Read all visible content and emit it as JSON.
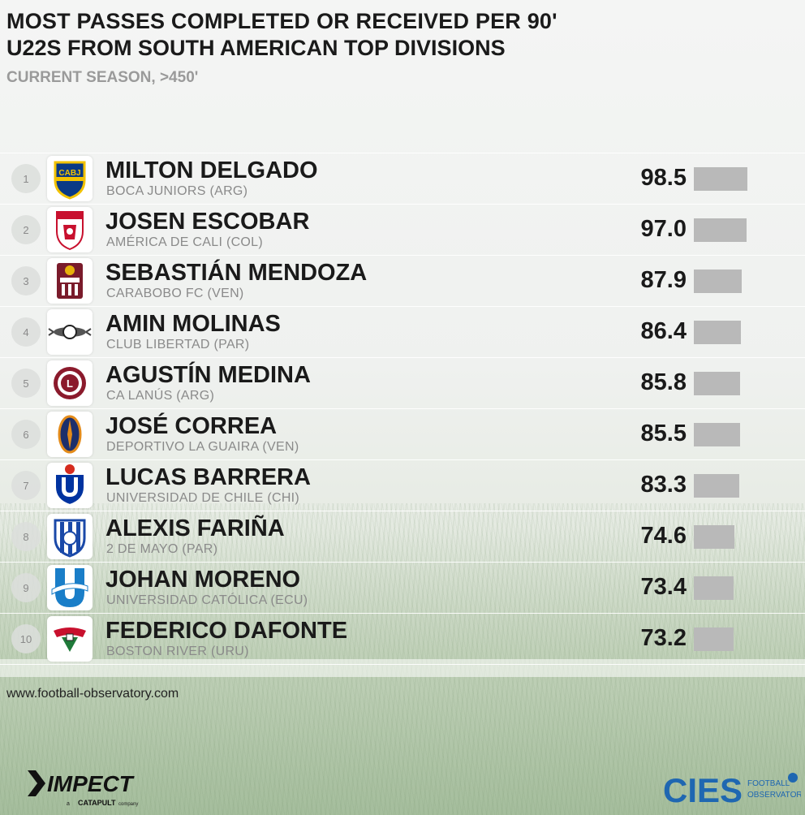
{
  "header": {
    "title": "MOST PASSES COMPLETED OR RECEIVED PER 90'",
    "subtitle": "U22S FROM SOUTH AMERICAN TOP DIVISIONS",
    "note": "CURRENT SEASON, >450'"
  },
  "chart_data": {
    "type": "bar",
    "title": "MOST PASSES COMPLETED OR RECEIVED PER 90'",
    "subtitle": "U22S FROM SOUTH AMERICAN TOP DIVISIONS",
    "note": "CURRENT SEASON, >450'",
    "xlim": [
      0,
      98.5
    ],
    "rows": [
      {
        "rank": "1",
        "player": "MILTON DELGADO",
        "club": "BOCA JUNIORS (ARG)",
        "value": 98.5,
        "label": "98.5",
        "logo": "boca-juniors-crest-icon"
      },
      {
        "rank": "2",
        "player": "JOSEN ESCOBAR",
        "club": "AMÉRICA DE CALI (COL)",
        "value": 97.0,
        "label": "97.0",
        "logo": "america-de-cali-crest-icon"
      },
      {
        "rank": "3",
        "player": "SEBASTIÁN MENDOZA",
        "club": "CARABOBO FC (VEN)",
        "value": 87.9,
        "label": "87.9",
        "logo": "carabobo-crest-icon"
      },
      {
        "rank": "4",
        "player": "AMIN MOLINAS",
        "club": "CLUB LIBERTAD (PAR)",
        "value": 86.4,
        "label": "86.4",
        "logo": "libertad-crest-icon"
      },
      {
        "rank": "5",
        "player": "AGUSTÍN MEDINA",
        "club": "CA LANÚS (ARG)",
        "value": 85.8,
        "label": "85.8",
        "logo": "lanus-crest-icon"
      },
      {
        "rank": "6",
        "player": "JOSÉ CORREA",
        "club": "DEPORTIVO LA GUAIRA (VEN)",
        "value": 85.5,
        "label": "85.5",
        "logo": "la-guaira-crest-icon"
      },
      {
        "rank": "7",
        "player": "LUCAS BARRERA",
        "club": "UNIVERSIDAD DE CHILE (CHI)",
        "value": 83.3,
        "label": "83.3",
        "logo": "universidad-de-chile-crest-icon"
      },
      {
        "rank": "8",
        "player": "ALEXIS FARIÑA",
        "club": "2 DE MAYO (PAR)",
        "value": 74.6,
        "label": "74.6",
        "logo": "2-de-mayo-crest-icon"
      },
      {
        "rank": "9",
        "player": "JOHAN MORENO",
        "club": "UNIVERSIDAD CATÓLICA (ECU)",
        "value": 73.4,
        "label": "73.4",
        "logo": "universidad-catolica-crest-icon"
      },
      {
        "rank": "10",
        "player": "FEDERICO DAFONTE",
        "club": "BOSTON RIVER (URU)",
        "value": 73.2,
        "label": "73.2",
        "logo": "boston-river-crest-icon"
      }
    ],
    "bar_color": "#b9b9b9"
  },
  "footer": {
    "source": "www.football-observatory.com",
    "impect_brand": "IMPECT",
    "impect_tagline_prefix": "a",
    "impect_tagline_brand": "CATAPULT",
    "impect_tagline_suffix": "company",
    "cies_brand": "CIES",
    "cies_line1": "FOOTBALL",
    "cies_line2": "OBSERVATORY"
  }
}
